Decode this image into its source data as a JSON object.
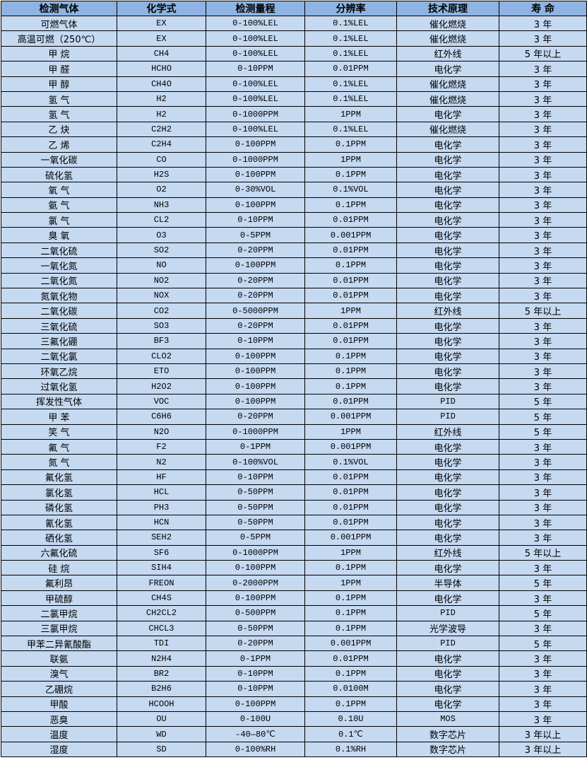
{
  "header": [
    "检测气体",
    "化学式",
    "检测量程",
    "分辨率",
    "技术原理",
    "寿 命"
  ],
  "rows": [
    [
      "可燃气体",
      "EX",
      "0-100%LEL",
      "0.1%LEL",
      "催化燃烧",
      "3 年"
    ],
    [
      "高温可燃（250℃）",
      "EX",
      "0-100%LEL",
      "0.1%LEL",
      "催化燃烧",
      "3 年"
    ],
    [
      "甲 烷",
      "CH4",
      "0-100%LEL",
      "0.1%LEL",
      "红外线",
      "5 年以上"
    ],
    [
      "甲 醛",
      "HCHO",
      "0-10PPM",
      "0.01PPM",
      "电化学",
      "3 年"
    ],
    [
      "甲 醇",
      "CH4O",
      "0-100%LEL",
      "0.1%LEL",
      "催化燃烧",
      "3 年"
    ],
    [
      "氢 气",
      "H2",
      "0-100%LEL",
      "0.1%LEL",
      "催化燃烧",
      "3 年"
    ],
    [
      "氢 气",
      "H2",
      "0-1000PPM",
      "1PPM",
      "电化学",
      "3 年"
    ],
    [
      "乙 炔",
      "C2H2",
      "0-100%LEL",
      "0.1%LEL",
      "催化燃烧",
      "3 年"
    ],
    [
      "乙 烯",
      "C2H4",
      "0-100PPM",
      "0.1PPM",
      "电化学",
      "3 年"
    ],
    [
      "一氧化碳",
      "CO",
      "0-1000PPM",
      "1PPM",
      "电化学",
      "3 年"
    ],
    [
      "硫化氢",
      "H2S",
      "0-100PPM",
      "0.1PPM",
      "电化学",
      "3 年"
    ],
    [
      "氧 气",
      "O2",
      "0-30%VOL",
      "0.1%VOL",
      "电化学",
      "3 年"
    ],
    [
      "氨 气",
      "NH3",
      "0-100PPM",
      "0.1PPM",
      "电化学",
      "3 年"
    ],
    [
      "氯 气",
      "CL2",
      "0-10PPM",
      "0.01PPM",
      "电化学",
      "3 年"
    ],
    [
      "臭 氧",
      "O3",
      "0-5PPM",
      "0.001PPM",
      "电化学",
      "3 年"
    ],
    [
      "二氧化硫",
      "SO2",
      "0-20PPM",
      "0.01PPM",
      "电化学",
      "3 年"
    ],
    [
      "一氧化氮",
      "NO",
      "0-100PPM",
      "0.1PPM",
      "电化学",
      "3 年"
    ],
    [
      "二氧化氮",
      "NO2",
      "0-20PPM",
      "0.01PPM",
      "电化学",
      "3 年"
    ],
    [
      "氮氧化物",
      "NOX",
      "0-20PPM",
      "0.01PPM",
      "电化学",
      "3 年"
    ],
    [
      "二氧化碳",
      "CO2",
      "0-5000PPM",
      "1PPM",
      "红外线",
      "5 年以上"
    ],
    [
      "三氧化硫",
      "SO3",
      "0-20PPM",
      "0.01PPM",
      "电化学",
      "3 年"
    ],
    [
      "三氟化硼",
      "BF3",
      "0-10PPM",
      "0.01PPM",
      "电化学",
      "3 年"
    ],
    [
      "二氧化氯",
      "CLO2",
      "0-100PPM",
      "0.1PPM",
      "电化学",
      "3 年"
    ],
    [
      "环氧乙烷",
      "ETO",
      "0-100PPM",
      "0.1PPM",
      "电化学",
      "3 年"
    ],
    [
      "过氧化氢",
      "H2O2",
      "0-100PPM",
      "0.1PPM",
      "电化学",
      "3 年"
    ],
    [
      "挥发性气体",
      "VOC",
      "0-100PPM",
      "0.01PPM",
      "PID",
      "5 年"
    ],
    [
      "甲 苯",
      "C6H6",
      "0-20PPM",
      "0.001PPM",
      "PID",
      "5 年"
    ],
    [
      "笑 气",
      "N2O",
      "0-1000PPM",
      "1PPM",
      "红外线",
      "5 年"
    ],
    [
      "氟 气",
      "F2",
      "0-1PPM",
      "0.001PPM",
      "电化学",
      "3 年"
    ],
    [
      "氮 气",
      "N2",
      "0-100%VOL",
      "0.1%VOL",
      "电化学",
      "3 年"
    ],
    [
      "氟化氢",
      "HF",
      "0-10PPM",
      "0.01PPM",
      "电化学",
      "3 年"
    ],
    [
      "氯化氢",
      "HCL",
      "0-50PPM",
      "0.01PPM",
      "电化学",
      "3 年"
    ],
    [
      "磷化氢",
      "PH3",
      "0-50PPM",
      "0.01PPM",
      "电化学",
      "3 年"
    ],
    [
      "氰化氢",
      "HCN",
      "0-50PPM",
      "0.01PPM",
      "电化学",
      "3 年"
    ],
    [
      "硒化氢",
      "SEH2",
      "0-5PPM",
      "0.001PPM",
      "电化学",
      "3 年"
    ],
    [
      "六氟化硫",
      "SF6",
      "0-1000PPM",
      "1PPM",
      "红外线",
      "5 年以上"
    ],
    [
      "硅 烷",
      "SIH4",
      "0-100PPM",
      "0.1PPM",
      "电化学",
      "3 年"
    ],
    [
      "氟利昂",
      "FREON",
      "0-2000PPM",
      "1PPM",
      "半导体",
      "5 年"
    ],
    [
      "甲硫醇",
      "CH4S",
      "0-100PPM",
      "0.1PPM",
      "电化学",
      "3 年"
    ],
    [
      "二氯甲烷",
      "CH2CL2",
      "0-500PPM",
      "0.1PPM",
      "PID",
      "5 年"
    ],
    [
      "三氯甲烷",
      "CHCL3",
      "0-50PPM",
      "0.1PPM",
      "光学波导",
      "3 年"
    ],
    [
      "甲苯二异氰酸酯",
      "TDI",
      "0-20PPM",
      "0.001PPM",
      "PID",
      "5 年"
    ],
    [
      "联氨",
      "N2H4",
      "0-1PPM",
      "0.01PPM",
      "电化学",
      "3 年"
    ],
    [
      "溴气",
      "BR2",
      "0-10PPM",
      "0.1PPM",
      "电化学",
      "3 年"
    ],
    [
      "乙硼烷",
      "B2H6",
      "0-10PPM",
      "0.0100M",
      "电化学",
      "3 年"
    ],
    [
      "甲酸",
      "HCOOH",
      "0-100PPM",
      "0.1PPM",
      "电化学",
      "3 年"
    ],
    [
      "恶臭",
      "OU",
      "0-100U",
      "0.10U",
      "MOS",
      "3 年"
    ],
    [
      "温度",
      "WD",
      "-40—80℃",
      "0.1℃",
      "数字芯片",
      "3 年以上"
    ],
    [
      "湿度",
      "SD",
      "0-100%RH",
      "0.1%RH",
      "数字芯片",
      "3 年以上"
    ]
  ]
}
